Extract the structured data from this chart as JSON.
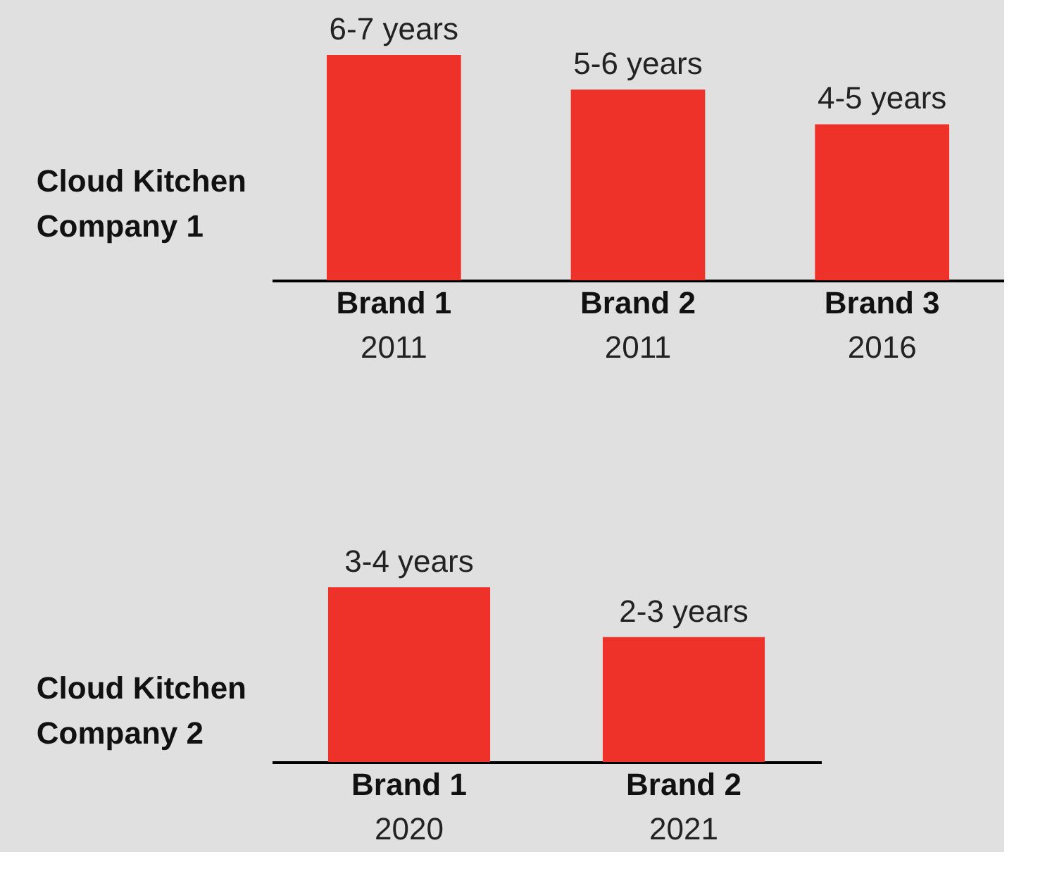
{
  "chart_data": [
    {
      "type": "bar",
      "title": "Cloud Kitchen Company 1",
      "categories": [
        "Brand 1",
        "Brand 2",
        "Brand 3"
      ],
      "values": [
        6.5,
        5.5,
        4.5
      ],
      "tick_labels": "x",
      "color": "#ee3129",
      "value_labels": [
        "6-7 years",
        "5-6 years",
        "4-5 years"
      ],
      "annotations": [
        "2011",
        "2011",
        "2016"
      ]
    },
    {
      "type": "bar",
      "title": "Cloud Kitchen Company 2",
      "categories": [
        "Brand 1",
        "Brand 2"
      ],
      "values": [
        3.5,
        2.5
      ],
      "tick_labels": "x",
      "color": "#ee3129",
      "value_labels": [
        "3-4 years",
        "2-3 years"
      ],
      "annotations": [
        "2020",
        "2021"
      ]
    }
  ]
}
